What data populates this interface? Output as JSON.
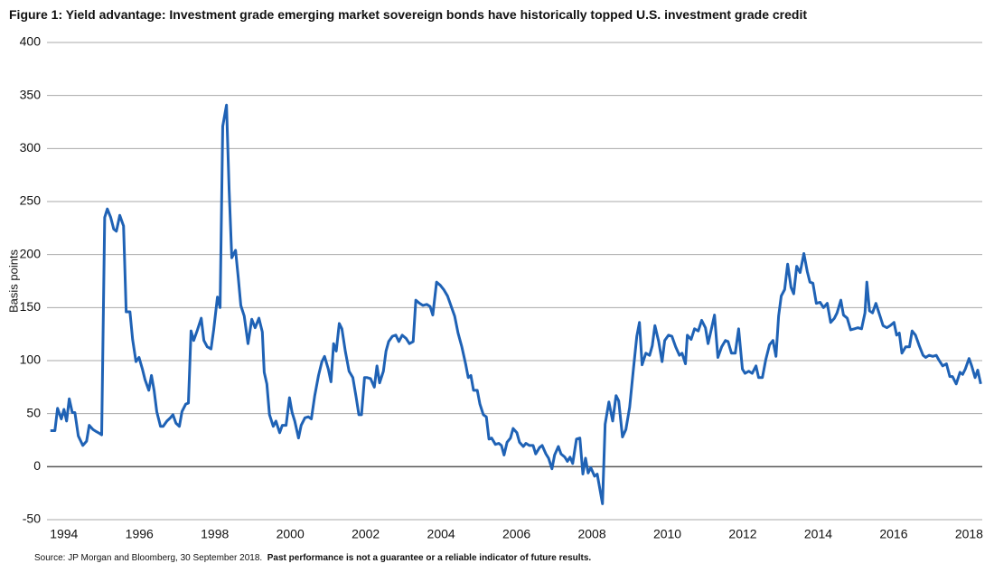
{
  "chart_data": {
    "type": "line",
    "title": "Figure 1: Yield advantage: Investment grade emerging market sovereign bonds have historically topped U.S. investment grade credit",
    "y_label": "Basis points",
    "source": "Source:  JP Morgan and Bloomberg, 30 September 2018.",
    "note": "Past performance is not a guarantee or a reliable indicator of future results.",
    "xlim": [
      1993.55,
      2018.35
    ],
    "xticks": [
      1994,
      1996,
      1998,
      2000,
      2002,
      2004,
      2006,
      2008,
      2010,
      2012,
      2014,
      2016,
      2018
    ],
    "ylim": [
      -50,
      400
    ],
    "yticks": [
      -50,
      0,
      50,
      100,
      150,
      200,
      250,
      300,
      350,
      400
    ],
    "grid": true,
    "x": [
      1993.64,
      1993.76,
      1993.83,
      1993.93,
      1994.0,
      1994.07,
      1994.14,
      1994.22,
      1994.29,
      1994.38,
      1994.5,
      1994.6,
      1994.67,
      1994.77,
      1994.86,
      1994.96,
      1995.0,
      1995.08,
      1995.15,
      1995.24,
      1995.32,
      1995.39,
      1995.48,
      1995.58,
      1995.65,
      1995.75,
      1995.82,
      1995.91,
      1995.99,
      1996.08,
      1996.15,
      1996.25,
      1996.32,
      1996.39,
      1996.46,
      1996.56,
      1996.63,
      1996.73,
      1996.82,
      1996.89,
      1996.97,
      1997.06,
      1997.13,
      1997.23,
      1997.3,
      1997.37,
      1997.44,
      1997.54,
      1997.64,
      1997.71,
      1997.8,
      1997.9,
      1997.97,
      1998.07,
      1998.14,
      1998.21,
      1998.31,
      1998.38,
      1998.45,
      1998.55,
      1998.62,
      1998.69,
      1998.78,
      1998.88,
      1998.98,
      1999.07,
      1999.17,
      1999.26,
      1999.31,
      1999.38,
      1999.45,
      1999.55,
      1999.62,
      1999.72,
      1999.79,
      1999.89,
      1999.98,
      2000.05,
      2000.12,
      2000.22,
      2000.29,
      2000.39,
      2000.48,
      2000.56,
      2000.65,
      2000.75,
      2000.84,
      2000.91,
      2001.01,
      2001.08,
      2001.15,
      2001.22,
      2001.3,
      2001.37,
      2001.46,
      2001.56,
      2001.66,
      2001.75,
      2001.82,
      2001.89,
      2001.97,
      2002.04,
      2002.13,
      2002.23,
      2002.3,
      2002.37,
      2002.47,
      2002.54,
      2002.61,
      2002.71,
      2002.8,
      2002.88,
      2002.97,
      2003.07,
      2003.16,
      2003.26,
      2003.33,
      2003.43,
      2003.52,
      2003.62,
      2003.71,
      2003.78,
      2003.88,
      2003.98,
      2004.07,
      2004.17,
      2004.26,
      2004.36,
      2004.45,
      2004.55,
      2004.65,
      2004.72,
      2004.79,
      2004.86,
      2004.96,
      2005.03,
      2005.12,
      2005.2,
      2005.27,
      2005.34,
      2005.44,
      2005.53,
      2005.6,
      2005.67,
      2005.75,
      2005.84,
      2005.91,
      2006.01,
      2006.08,
      2006.18,
      2006.25,
      2006.34,
      2006.44,
      2006.51,
      2006.61,
      2006.68,
      2006.78,
      2006.85,
      2006.94,
      2007.01,
      2007.11,
      2007.18,
      2007.28,
      2007.35,
      2007.42,
      2007.49,
      2007.59,
      2007.68,
      2007.76,
      2007.83,
      2007.9,
      2007.97,
      2008.07,
      2008.14,
      2008.28,
      2008.35,
      2008.45,
      2008.55,
      2008.64,
      2008.71,
      2008.81,
      2008.9,
      2009.0,
      2009.1,
      2009.19,
      2009.26,
      2009.33,
      2009.43,
      2009.53,
      2009.6,
      2009.67,
      2009.77,
      2009.86,
      2009.93,
      2010.03,
      2010.12,
      2010.22,
      2010.32,
      2010.39,
      2010.48,
      2010.53,
      2010.63,
      2010.72,
      2010.82,
      2010.91,
      2011.01,
      2011.08,
      2011.15,
      2011.25,
      2011.34,
      2011.44,
      2011.54,
      2011.61,
      2011.7,
      2011.8,
      2011.89,
      2011.99,
      2012.06,
      2012.16,
      2012.25,
      2012.35,
      2012.42,
      2012.52,
      2012.61,
      2012.71,
      2012.8,
      2012.88,
      2012.95,
      2013.02,
      2013.11,
      2013.19,
      2013.28,
      2013.35,
      2013.43,
      2013.52,
      2013.62,
      2013.71,
      2013.78,
      2013.86,
      2013.95,
      2014.05,
      2014.14,
      2014.24,
      2014.33,
      2014.43,
      2014.5,
      2014.6,
      2014.67,
      2014.77,
      2014.86,
      2014.96,
      2015.05,
      2015.15,
      2015.24,
      2015.29,
      2015.36,
      2015.44,
      2015.53,
      2015.63,
      2015.72,
      2015.82,
      2015.91,
      2016.01,
      2016.08,
      2016.15,
      2016.22,
      2016.32,
      2016.42,
      2016.49,
      2016.58,
      2016.68,
      2016.78,
      2016.85,
      2016.94,
      2017.04,
      2017.13,
      2017.21,
      2017.3,
      2017.4,
      2017.49,
      2017.56,
      2017.66,
      2017.76,
      2017.83,
      2017.9,
      2018.0,
      2018.07,
      2018.16,
      2018.23,
      2018.31
    ],
    "series": [
      {
        "color": "#1f62b5",
        "values": [
          34,
          34,
          55,
          45,
          54,
          43,
          64,
          51,
          51,
          29,
          20,
          24,
          39,
          35,
          33,
          31,
          30,
          235,
          243,
          235,
          224,
          222,
          237,
          227,
          146,
          146,
          120,
          99,
          103,
          92,
          82,
          72,
          86,
          72,
          52,
          38,
          38,
          43,
          46,
          49,
          41,
          38,
          52,
          59,
          60,
          128,
          119,
          129,
          140,
          119,
          113,
          111,
          129,
          160,
          150,
          321,
          341,
          261,
          197,
          204,
          179,
          152,
          142,
          116,
          139,
          131,
          140,
          127,
          89,
          78,
          49,
          38,
          43,
          32,
          39,
          39,
          65,
          51,
          43,
          27,
          39,
          46,
          47,
          45,
          67,
          86,
          99,
          104,
          92,
          80,
          116,
          109,
          135,
          130,
          109,
          90,
          84,
          65,
          49,
          49,
          84,
          84,
          83,
          75,
          95,
          79,
          90,
          109,
          118,
          123,
          124,
          118,
          124,
          121,
          116,
          118,
          157,
          154,
          152,
          153,
          151,
          143,
          174,
          171,
          167,
          161,
          152,
          142,
          126,
          113,
          97,
          84,
          86,
          72,
          72,
          59,
          49,
          47,
          26,
          27,
          21,
          22,
          20,
          11,
          23,
          27,
          36,
          32,
          23,
          19,
          22,
          20,
          20,
          12,
          18,
          20,
          12,
          8,
          -2,
          11,
          19,
          12,
          9,
          5,
          9,
          3,
          26,
          27,
          -7,
          8,
          -6,
          -1,
          -9,
          -7,
          -35,
          40,
          61,
          43,
          67,
          62,
          28,
          35,
          56,
          92,
          123,
          136,
          96,
          107,
          105,
          114,
          133,
          118,
          99,
          119,
          124,
          123,
          113,
          105,
          107,
          97,
          124,
          120,
          130,
          128,
          138,
          131,
          116,
          127,
          143,
          103,
          113,
          119,
          118,
          107,
          107,
          130,
          92,
          88,
          90,
          88,
          95,
          84,
          84,
          101,
          115,
          119,
          104,
          142,
          161,
          167,
          191,
          169,
          163,
          189,
          183,
          201,
          184,
          174,
          173,
          154,
          155,
          150,
          154,
          136,
          140,
          145,
          157,
          143,
          140,
          129,
          130,
          131,
          130,
          145,
          174,
          147,
          145,
          154,
          143,
          133,
          131,
          133,
          136,
          124,
          126,
          107,
          113,
          113,
          128,
          124,
          114,
          105,
          103,
          105,
          104,
          105,
          100,
          95,
          97,
          85,
          85,
          78,
          89,
          87,
          92,
          102,
          95,
          84,
          91,
          78
        ]
      }
    ]
  }
}
